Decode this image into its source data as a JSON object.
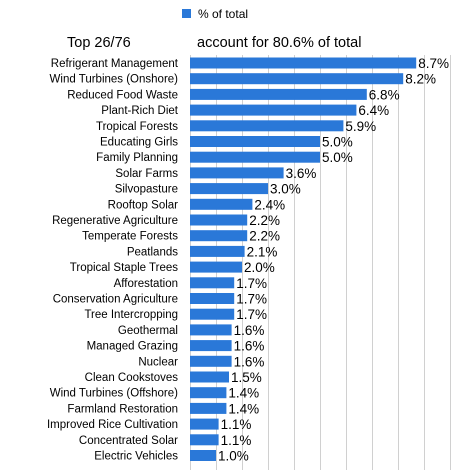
{
  "legend": {
    "label": "% of total",
    "color": "#2a78d8"
  },
  "header": {
    "left": "Top 26/76",
    "right": "account for 80.6% of total"
  },
  "chart_data": {
    "type": "bar",
    "orientation": "horizontal",
    "categories": [
      "Refrigerant Management",
      "Wind Turbines (Onshore)",
      "Reduced Food Waste",
      "Plant-Rich Diet",
      "Tropical Forests",
      "Educating Girls",
      "Family Planning",
      "Solar Farms",
      "Silvopasture",
      "Rooftop Solar",
      "Regenerative Agriculture",
      "Temperate Forests",
      "Peatlands",
      "Tropical Staple Trees",
      "Afforestation",
      "Conservation Agriculture",
      "Tree Intercropping",
      "Geothermal",
      "Managed Grazing",
      "Nuclear",
      "Clean Cookstoves",
      "Wind Turbines (Offshore)",
      "Farmland Restoration",
      "Improved Rice Cultivation",
      "Concentrated Solar",
      "Electric Vehicles"
    ],
    "series": [
      {
        "name": "% of total",
        "values": [
          8.7,
          8.2,
          6.8,
          6.4,
          5.9,
          5.0,
          5.0,
          3.6,
          3.0,
          2.4,
          2.2,
          2.2,
          2.1,
          2.0,
          1.7,
          1.7,
          1.7,
          1.6,
          1.6,
          1.6,
          1.5,
          1.4,
          1.4,
          1.1,
          1.1,
          1.0
        ],
        "labels": [
          "8.7%",
          "8.2%",
          "6.8%",
          "6.4%",
          "5.9%",
          "5.0%",
          "5.0%",
          "3.6%",
          "3.0%",
          "2.4%",
          "2.2%",
          "2.2%",
          "2.1%",
          "2.0%",
          "1.7%",
          "1.7%",
          "1.7%",
          "1.6%",
          "1.6%",
          "1.6%",
          "1.5%",
          "1.4%",
          "1.4%",
          "1.1%",
          "1.1%",
          "1.0%"
        ]
      }
    ],
    "xlim": [
      0,
      10
    ],
    "grid": true,
    "legend_position": "top"
  }
}
